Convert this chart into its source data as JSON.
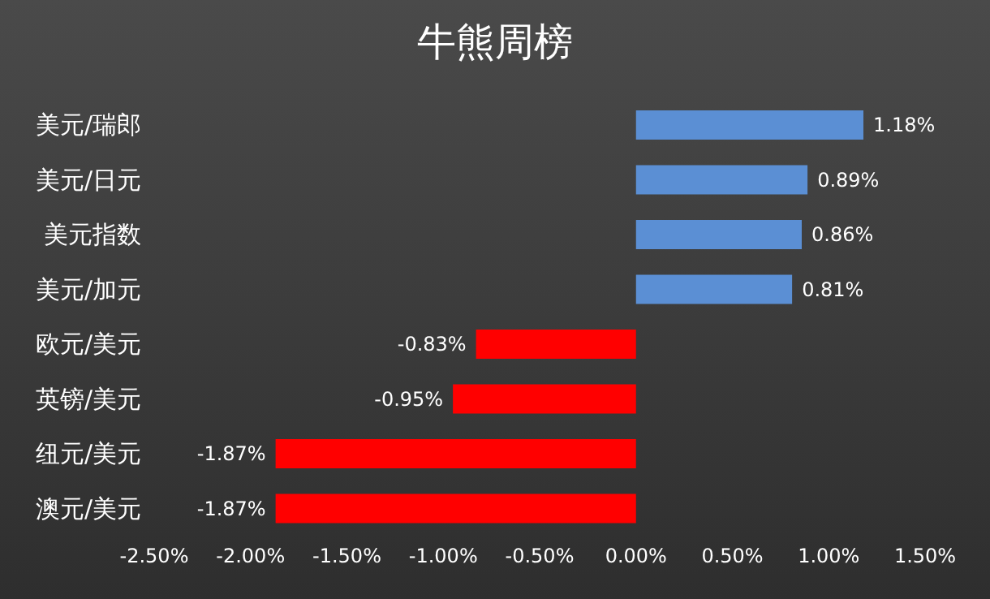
{
  "chart_data": {
    "type": "bar",
    "orientation": "horizontal",
    "title": "牛熊周榜",
    "categories": [
      "美元/瑞郎",
      "美元/日元",
      "美元指数",
      "美元/加元",
      "欧元/美元",
      "英镑/美元",
      "纽元/美元",
      "澳元/美元"
    ],
    "values": [
      1.18,
      0.89,
      0.86,
      0.81,
      -0.83,
      -0.95,
      -1.87,
      -1.87
    ],
    "colors": [
      "#5b8fd4",
      "#5b8fd4",
      "#5b8fd4",
      "#5b8fd4",
      "#ff0000",
      "#ff0000",
      "#ff0000",
      "#ff0000"
    ],
    "value_labels": [
      "1.18%",
      "0.89%",
      "0.86%",
      "0.81%",
      "-0.83%",
      "-0.95%",
      "-1.87%",
      "-1.87%"
    ],
    "xlim": [
      -2.5,
      1.5
    ],
    "xticks": [
      {
        "value": -2.5,
        "label": "-2.50%"
      },
      {
        "value": -2,
        "label": "-2.00%"
      },
      {
        "value": -1.5,
        "label": "-1.50%"
      },
      {
        "value": -1,
        "label": "-1.00%"
      },
      {
        "value": -0.5,
        "label": "-0.50%"
      },
      {
        "value": 0,
        "label": "0.00%"
      },
      {
        "value": 0.5,
        "label": "0.50%"
      },
      {
        "value": 1,
        "label": "1.00%"
      },
      {
        "value": 1.5,
        "label": "1.50%"
      }
    ],
    "grid": false,
    "legend": false
  }
}
